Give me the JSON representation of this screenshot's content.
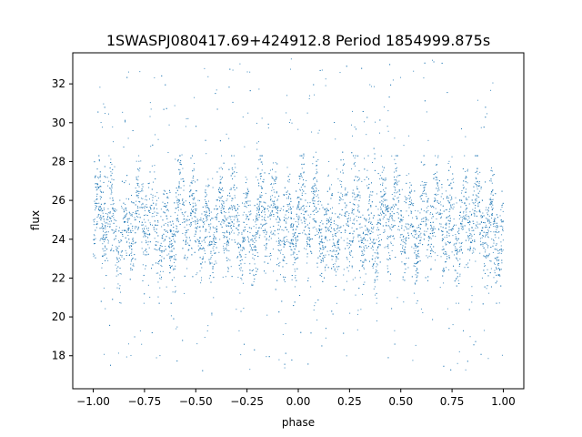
{
  "chart_data": {
    "type": "scatter",
    "title": "1SWASPJ080417.69+424912.8 Period 1854999.875s",
    "xlabel": "phase",
    "ylabel": "flux",
    "xlim": [
      -1.1,
      1.1
    ],
    "ylim": [
      16.3,
      33.6
    ],
    "xticks": [
      -1.0,
      -0.75,
      -0.5,
      -0.25,
      0.0,
      0.25,
      0.5,
      0.75,
      1.0
    ],
    "xtick_labels": [
      "−1.00",
      "−0.75",
      "−0.50",
      "−0.25",
      "0.00",
      "0.25",
      "0.50",
      "0.75",
      "1.00"
    ],
    "yticks": [
      18,
      20,
      22,
      24,
      26,
      28,
      30,
      32
    ],
    "ytick_labels": [
      "18",
      "20",
      "22",
      "24",
      "26",
      "28",
      "30",
      "32"
    ],
    "grid": false,
    "marker_color": "#1f77b4",
    "series": [
      {
        "description_free": true,
        "x_range": [
          -1.0,
          1.0
        ],
        "y_core_range": [
          21.0,
          28.0
        ],
        "y_full_range": [
          17.2,
          33.3
        ],
        "y_median": 24.8,
        "point_count": 6000
      }
    ]
  }
}
